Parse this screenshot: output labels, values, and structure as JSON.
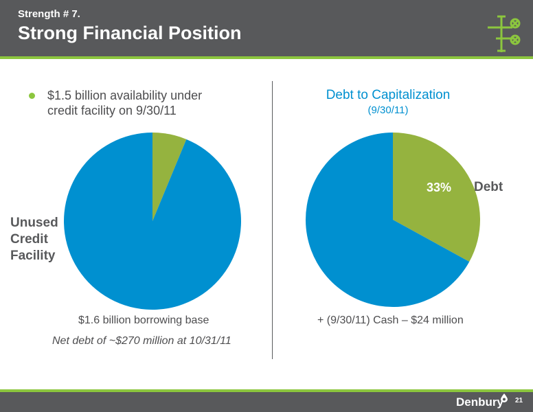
{
  "header": {
    "subtitle": "Strength # 7.",
    "title": "Strong Financial Position"
  },
  "left_panel": {
    "bullet": "$1.5 billion availability under\ncredit facility on 9/30/11",
    "unused_label": "Unused\nCredit\nFacility",
    "borrowing_base": "$1.6 billion borrowing base",
    "net_debt_note": "Net debt of ~$270 million at 10/31/11"
  },
  "right_panel": {
    "title": "Debt to Capitalization",
    "date": "(9/30/11)",
    "percent_label": "33%",
    "debt_label": "Debt",
    "cash_note": "+ (9/30/11) Cash – $24 million"
  },
  "footer": {
    "logo_text": "Denbury",
    "page_number": "21"
  },
  "colors": {
    "header": "#58595b",
    "accent_green": "#8cc63e",
    "pie_green": "#95b33f",
    "pie_blue": "#0090d0",
    "title_blue": "#0090d0",
    "text": "#4d4d4f"
  },
  "chart_data": [
    {
      "type": "pie",
      "title": "",
      "slices": [
        {
          "label": "",
          "value": 6.25,
          "color": "#95b33f"
        },
        {
          "label": "Unused Credit Facility",
          "value": 93.75,
          "color": "#0090d0"
        }
      ]
    },
    {
      "type": "pie",
      "title": "Debt to Capitalization",
      "subtitle": "(9/30/11)",
      "slices": [
        {
          "label": "Debt",
          "value": 33,
          "color": "#95b33f"
        },
        {
          "label": "",
          "value": 67,
          "color": "#0090d0"
        }
      ]
    }
  ]
}
